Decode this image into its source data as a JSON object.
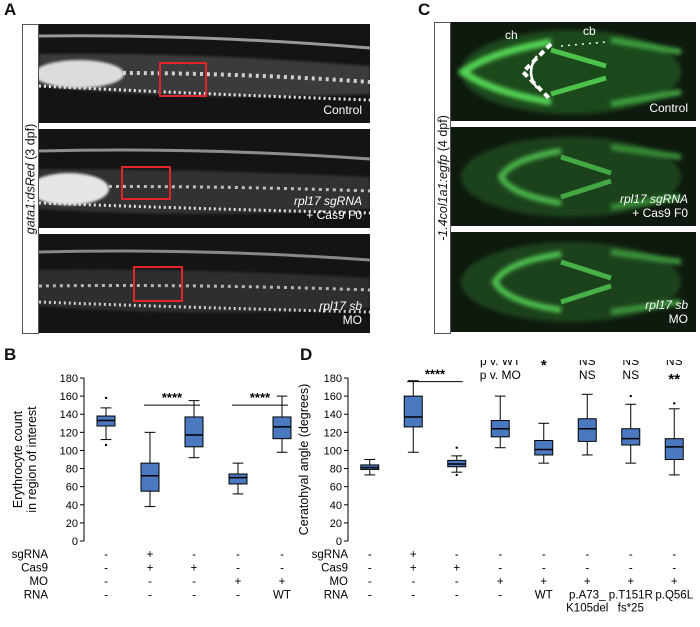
{
  "panels": {
    "A": {
      "letter": "A",
      "side_label_gene": "gata1:dsRed",
      "side_label_stage": " (3 dpf)",
      "images": [
        {
          "caption_line1": "Control",
          "caption_line2": ""
        },
        {
          "caption_line1": "rpl17 sgRNA",
          "caption_line2": "+ Cas9 F0"
        },
        {
          "caption_line1": "rpl17 sb",
          "caption_line2": "MO"
        }
      ]
    },
    "C": {
      "letter": "C",
      "side_label_gene": "-1.4col1a1:egfp",
      "side_label_stage": " (4 dpf)",
      "annotations": {
        "ch": "ch",
        "cb": "cb"
      },
      "images": [
        {
          "caption_line1": "Control",
          "caption_line2": ""
        },
        {
          "caption_line1": "rpl17 sgRNA",
          "caption_line2": "+ Cas9 F0"
        },
        {
          "caption_line1": "rpl17 sb",
          "caption_line2": "MO"
        }
      ]
    },
    "B": {
      "letter": "B"
    },
    "D": {
      "letter": "D"
    }
  },
  "colors": {
    "box_fill": "#4a79c0",
    "roi": "#e0262b",
    "gfp": "#54d654"
  },
  "chart_data": [
    {
      "id": "B",
      "type": "boxplot",
      "ylabel": "Erythrocyte count\nin region of interest",
      "ylim": [
        0,
        180
      ],
      "yticks": [
        0,
        20,
        40,
        60,
        80,
        100,
        120,
        140,
        160,
        180
      ],
      "groups": [
        {
          "q1": 127,
          "median": 133,
          "q3": 138,
          "whisker_low": 112,
          "whisker_high": 147,
          "outliers": [
            106,
            158
          ]
        },
        {
          "q1": 55,
          "median": 72,
          "q3": 86,
          "whisker_low": 38,
          "whisker_high": 120,
          "outliers": []
        },
        {
          "q1": 104,
          "median": 117,
          "q3": 137,
          "whisker_low": 92,
          "whisker_high": 155,
          "outliers": []
        },
        {
          "q1": 63,
          "median": 70,
          "q3": 74,
          "whisker_low": 52,
          "whisker_high": 86,
          "outliers": []
        },
        {
          "q1": 113,
          "median": 126,
          "q3": 137,
          "whisker_low": 98,
          "whisker_high": 160,
          "outliers": []
        }
      ],
      "significance": [
        {
          "from": 1,
          "to": 2,
          "label": "****",
          "y": 150
        },
        {
          "from": 3,
          "to": 4,
          "label": "****",
          "y": 150
        }
      ],
      "conditions": [
        {
          "label": "sgRNA",
          "values": [
            "-",
            "+",
            "-",
            "-",
            "-"
          ]
        },
        {
          "label": "Cas9",
          "values": [
            "-",
            "+",
            "+",
            "-",
            "-"
          ]
        },
        {
          "label": "MO",
          "values": [
            "-",
            "-",
            "-",
            "+",
            "+"
          ]
        },
        {
          "label": "RNA",
          "values": [
            "-",
            "-",
            "-",
            "-",
            "WT"
          ]
        }
      ]
    },
    {
      "id": "D",
      "type": "boxplot",
      "ylabel": "Ceratohyal angle (degrees)",
      "ylim": [
        0,
        180
      ],
      "yticks": [
        0,
        20,
        40,
        60,
        80,
        100,
        120,
        140,
        160,
        180
      ],
      "groups": [
        {
          "q1": 79,
          "median": 81,
          "q3": 84,
          "whisker_low": 73,
          "whisker_high": 90,
          "outliers": []
        },
        {
          "q1": 126,
          "median": 137,
          "q3": 160,
          "whisker_low": 98,
          "whisker_high": 177,
          "outliers": []
        },
        {
          "q1": 82,
          "median": 85,
          "q3": 89,
          "whisker_low": 76,
          "whisker_high": 94,
          "outliers": [
            73,
            103
          ]
        },
        {
          "q1": 115,
          "median": 124,
          "q3": 133,
          "whisker_low": 103,
          "whisker_high": 160,
          "outliers": []
        },
        {
          "q1": 95,
          "median": 101,
          "q3": 111,
          "whisker_low": 86,
          "whisker_high": 130,
          "outliers": []
        },
        {
          "q1": 110,
          "median": 124,
          "q3": 135,
          "whisker_low": 95,
          "whisker_high": 162,
          "outliers": []
        },
        {
          "q1": 106,
          "median": 113,
          "q3": 124,
          "whisker_low": 86,
          "whisker_high": 151,
          "outliers": [
            160
          ]
        },
        {
          "q1": 90,
          "median": 104,
          "q3": 113,
          "whisker_low": 73,
          "whisker_high": 146,
          "outliers": [
            152
          ]
        }
      ],
      "significance": [
        {
          "from": 1,
          "to": 2,
          "label": "****",
          "y": 176
        }
      ],
      "stats_header": {
        "row1": "p v. WT",
        "row2": "p v. MO"
      },
      "stats": [
        {
          "group": 4,
          "vs_wt": "*",
          "vs_mo": ""
        },
        {
          "group": 5,
          "vs_wt": "NS",
          "vs_mo": "NS"
        },
        {
          "group": 6,
          "vs_wt": "NS",
          "vs_mo": "NS"
        },
        {
          "group": 7,
          "vs_wt": "NS",
          "vs_mo": "**"
        }
      ],
      "conditions": [
        {
          "label": "sgRNA",
          "values": [
            "-",
            "+",
            "-",
            "-",
            "-",
            "-",
            "-",
            "-"
          ]
        },
        {
          "label": "Cas9",
          "values": [
            "-",
            "+",
            "+",
            "-",
            "-",
            "-",
            "-",
            "-"
          ]
        },
        {
          "label": "MO",
          "values": [
            "-",
            "-",
            "-",
            "+",
            "+",
            "+",
            "+",
            "+"
          ]
        },
        {
          "label": "RNA",
          "values": [
            "-",
            "-",
            "-",
            "-",
            "WT",
            "p.A73_\nK105del",
            "p.T151R\nfs*25",
            "p.Q56L"
          ]
        }
      ]
    }
  ]
}
